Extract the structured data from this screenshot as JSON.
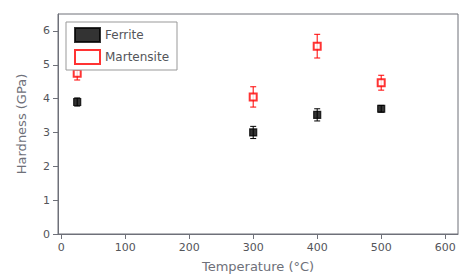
{
  "chart_data": {
    "type": "scatter",
    "xlabel": "Temperature (°C)",
    "ylabel": "Hardness (GPa)",
    "xlim": [
      -5,
      620
    ],
    "ylim": [
      0,
      6.5
    ],
    "xticks": [
      0,
      100,
      200,
      300,
      400,
      500,
      600
    ],
    "yticks": [
      0,
      1,
      2,
      3,
      4,
      5,
      6
    ],
    "grid": false,
    "legend": "upper left",
    "series": [
      {
        "name": "Ferrite",
        "color": "black",
        "marker": "square",
        "x": [
          25,
          300,
          400,
          500
        ],
        "values": [
          3.9,
          3.0,
          3.52,
          3.7
        ],
        "yerr": [
          0.12,
          0.18,
          0.18,
          0.1
        ]
      },
      {
        "name": "Martensite",
        "color": "red",
        "marker": "open_square",
        "x": [
          25,
          300,
          400,
          500
        ],
        "values": [
          4.75,
          4.05,
          5.55,
          4.47
        ],
        "yerr": [
          0.2,
          0.3,
          0.35,
          0.22
        ]
      }
    ]
  }
}
